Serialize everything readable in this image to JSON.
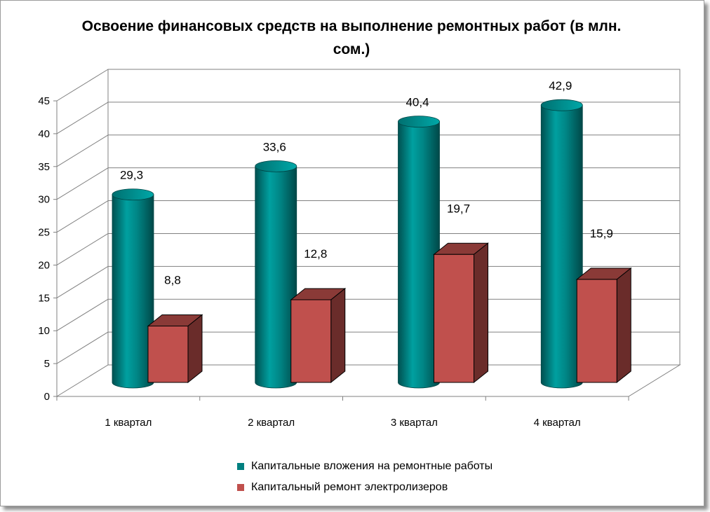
{
  "chart_data": {
    "type": "bar",
    "title": "Освоение финансовых средств на выполнение ремонтных работ (в млн. сом.)",
    "categories": [
      "1 квартал",
      "2 квартал",
      "3 квартал",
      "4 квартал"
    ],
    "series": [
      {
        "name": "Капитальные вложения на ремонтные работы",
        "values": [
          29.3,
          33.6,
          40.4,
          42.9
        ],
        "labels": [
          "29,3",
          "33,6",
          "40,4",
          "42,9"
        ],
        "color": "#008080",
        "shape": "cylinder"
      },
      {
        "name": "Капитальный ремонт электролизеров",
        "values": [
          8.8,
          12.8,
          19.7,
          15.9
        ],
        "labels": [
          "8,8",
          "12,8",
          "19,7",
          "15,9"
        ],
        "color": "#C0504D",
        "shape": "box"
      }
    ],
    "yticks": [
      "0",
      "5",
      "10",
      "15",
      "20",
      "25",
      "30",
      "35",
      "40",
      "45"
    ],
    "ylim": [
      0,
      45
    ],
    "grid": true,
    "legend_position": "bottom",
    "style": "3d"
  }
}
